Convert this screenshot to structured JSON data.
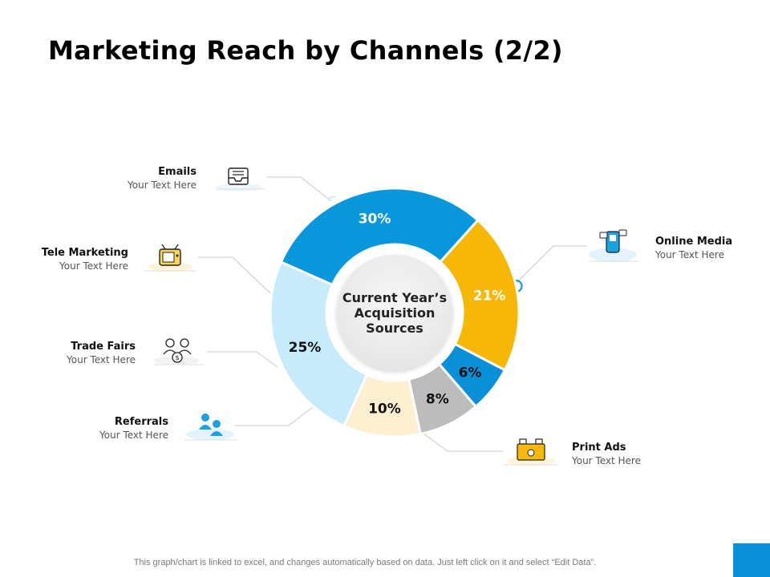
{
  "title": "Marketing Reach by Channels (2/2)",
  "footer": "This graph/chart is linked to excel, and changes automatically based on data. Just left click on it and select “Edit Data”.",
  "chart_data": {
    "type": "pie",
    "donut": true,
    "center_label": [
      "Current Year’s",
      "Acquisition",
      "Sources"
    ],
    "slices": [
      {
        "label": "30%",
        "value": 30,
        "color": "#0897dd",
        "text_color": "#ffffff"
      },
      {
        "label": "21%",
        "value": 21,
        "color": "#f7b705",
        "text_color": "#ffffff"
      },
      {
        "label": "6%",
        "value": 6,
        "color": "#0a90d8",
        "text_color": "#111111"
      },
      {
        "label": "8%",
        "value": 8,
        "color": "#bcbcbc",
        "text_color": "#111111"
      },
      {
        "label": "10%",
        "value": 10,
        "color": "#fdefcf",
        "text_color": "#111111"
      },
      {
        "label": "25%",
        "value": 25,
        "color": "#c8ebfb",
        "text_color": "#111111"
      }
    ]
  },
  "channels": [
    {
      "name": "Emails",
      "text": "Your Text Here",
      "icon": "email-inbox-icon"
    },
    {
      "name": "Tele Marketing",
      "text": "Your Text Here",
      "icon": "television-icon"
    },
    {
      "name": "Trade Fairs",
      "text": "Your Text Here",
      "icon": "people-money-icon"
    },
    {
      "name": "Referrals",
      "text": "Your Text Here",
      "icon": "referral-people-icon"
    },
    {
      "name": "Online Media",
      "text": "Your Text Here",
      "icon": "phone-social-icon"
    },
    {
      "name": "Print Ads",
      "text": "Your Text Here",
      "icon": "printer-icon"
    }
  ]
}
